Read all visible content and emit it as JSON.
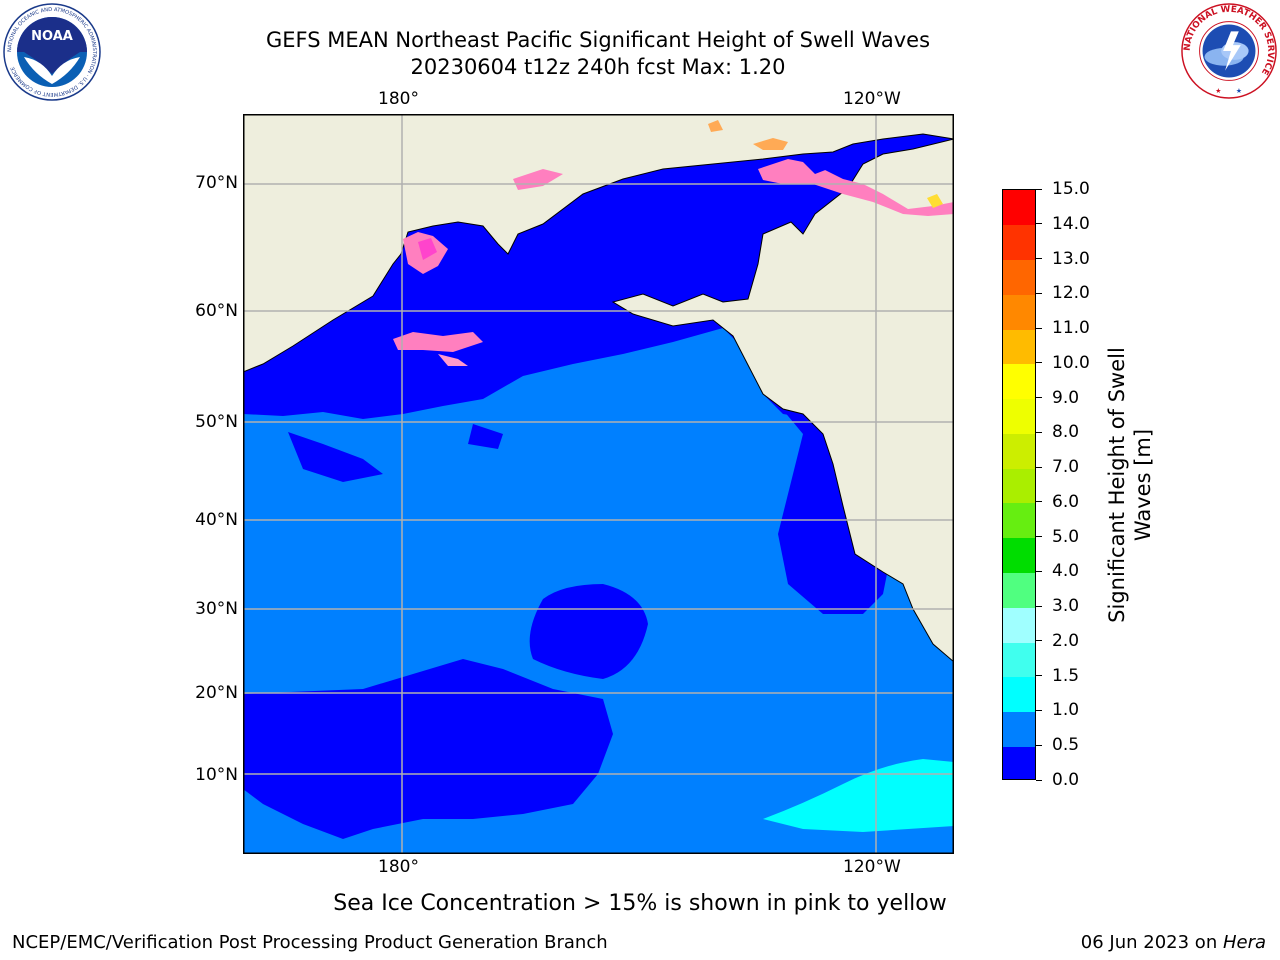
{
  "title": {
    "line1": "GEFS MEAN Northeast Pacific Significant Height of Swell Waves",
    "line2": "20230604 t12z 240h fcst   Max: 1.20"
  },
  "logos": {
    "left": {
      "name": "NOAA",
      "ring_text": "NATIONAL OCEANIC AND ATMOSPHERIC ADMINISTRATION · U.S. DEPARTMENT OF COMMERCE"
    },
    "right": {
      "ring_text": "NATIONAL WEATHER SERVICE"
    }
  },
  "map": {
    "lon_ticks_top": [
      "180°",
      "120°W"
    ],
    "lon_ticks_bottom": [
      "180°",
      "120°W"
    ],
    "lat_ticks": [
      "70°N",
      "60°N",
      "50°N",
      "40°N",
      "30°N",
      "20°N",
      "10°N"
    ],
    "colors": {
      "land": "#eeeedd",
      "ocean_low": "#0000ff",
      "ocean_mid": "#0080ff",
      "ocean_high": "#00ffff",
      "grid": "#b0b0b0",
      "ice_pink": "#ff7fbf",
      "ice_orange": "#ffaa55",
      "ice_yellow": "#ffdd33"
    }
  },
  "colorbar": {
    "label": "Significant Height of Swell Waves [m]",
    "ticks": [
      "0.0",
      "0.5",
      "1.0",
      "1.5",
      "2.0",
      "3.0",
      "4.0",
      "5.0",
      "6.0",
      "7.0",
      "8.0",
      "9.0",
      "10.0",
      "11.0",
      "12.0",
      "13.0",
      "14.0",
      "15.0"
    ],
    "colors": [
      "#0000ff",
      "#0080ff",
      "#00ffff",
      "#40ffee",
      "#a0ffff",
      "#50ff80",
      "#00dd00",
      "#66ee11",
      "#aaee00",
      "#ccee00",
      "#eeff00",
      "#ffff00",
      "#ffbb00",
      "#ff8800",
      "#ff6600",
      "#ff3300",
      "#ff0000"
    ]
  },
  "footer": {
    "caption": "Sea Ice Concentration > 15% is shown in pink to yellow",
    "credit": "NCEP/EMC/Verification Post Processing Product Generation Branch",
    "date_prefix": "06 Jun 2023 on ",
    "date_machine": "Hera"
  }
}
